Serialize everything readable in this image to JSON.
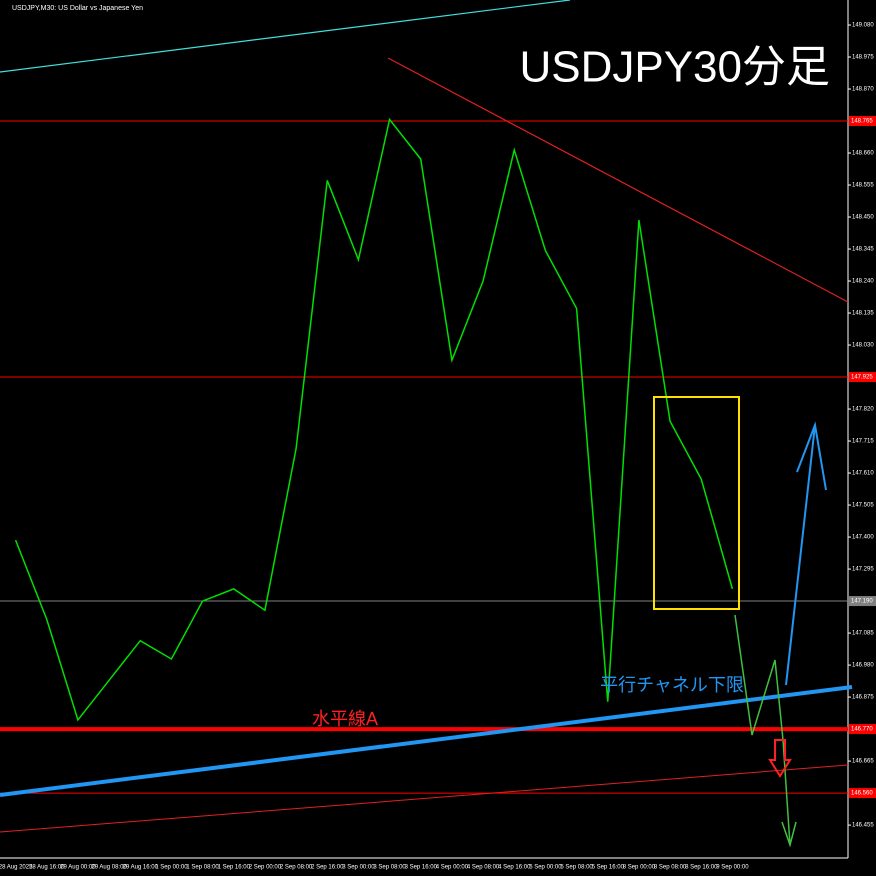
{
  "chart_data": {
    "type": "line",
    "header": "USDJPY,M30: US Dollar vs Japanese Yen",
    "title": "USDJPY30分足",
    "annotations": [
      "水平線A",
      "平行チャネル下限"
    ],
    "categories": [
      "28 Aug 2025",
      "28 Aug 16:00",
      "29 Aug 00:00",
      "29 Aug 08:00",
      "29 Aug 16:00",
      "1 Sep 00:00",
      "1 Sep 08:00",
      "1 Sep 16:00",
      "2 Sep 00:00",
      "2 Sep 08:00",
      "2 Sep 16:00",
      "3 Sep 00:00",
      "3 Sep 08:00",
      "3 Sep 16:00",
      "4 Sep 00:00",
      "4 Sep 08:00",
      "4 Sep 16:00",
      "5 Sep 00:00",
      "5 Sep 08:00",
      "5 Sep 16:00",
      "8 Sep 00:00",
      "8 Sep 08:00",
      "8 Sep 16:00",
      "9 Sep 00:00"
    ],
    "values": [
      147.39,
      147.13,
      146.8,
      146.93,
      147.06,
      147.0,
      147.19,
      147.23,
      147.16,
      147.69,
      148.57,
      148.31,
      148.77,
      148.64,
      147.98,
      148.24,
      148.67,
      148.34,
      148.15,
      146.86,
      148.44,
      147.78,
      147.59,
      147.23
    ],
    "color": "#00e000",
    "ylim": [
      146.347,
      149.162
    ],
    "yticks": [
      {
        "value": 149.08,
        "label": "149.080"
      },
      148.975,
      {
        "value": 148.87,
        "label": "148.870"
      },
      {
        "value": 148.66,
        "label": "148.660"
      },
      148.555,
      {
        "value": 148.45,
        "label": "148.450"
      },
      148.345,
      {
        "value": 148.24,
        "label": "148.240"
      },
      148.135,
      {
        "value": 148.03,
        "label": "148.030"
      },
      {
        "value": 147.82,
        "label": "147.820"
      },
      147.715,
      {
        "value": 147.61,
        "label": "147.610"
      },
      147.505,
      {
        "value": 147.4,
        "label": "147.400"
      },
      147.295,
      147.085,
      {
        "value": 146.98,
        "label": "146.980"
      },
      146.875,
      146.665,
      146.455
    ],
    "levels": [
      {
        "value": 148.765,
        "color": "#ff0000"
      },
      {
        "value": 147.925,
        "color": "#ff0000"
      },
      {
        "value": 147.19,
        "label": "147.190",
        "color": "#808080"
      },
      {
        "value": 146.77,
        "label": "146.770",
        "color": "#ff0000"
      },
      {
        "value": 146.56,
        "label": "146.560",
        "color": "#ff0000"
      }
    ]
  }
}
